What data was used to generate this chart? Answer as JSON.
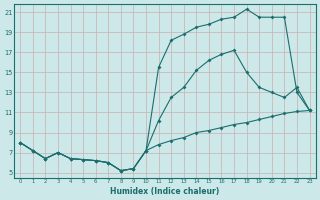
{
  "xlabel": "Humidex (Indice chaleur)",
  "bg_color": "#cce8e8",
  "line_color": "#1a6e6e",
  "grid_color": "#c8b0b0",
  "xlim": [
    -0.5,
    23.5
  ],
  "ylim": [
    4.5,
    21.8
  ],
  "xticks": [
    0,
    1,
    2,
    3,
    4,
    5,
    6,
    7,
    8,
    9,
    10,
    11,
    12,
    13,
    14,
    15,
    16,
    17,
    18,
    19,
    20,
    21,
    22,
    23
  ],
  "yticks": [
    5,
    7,
    9,
    11,
    13,
    15,
    17,
    19,
    21
  ],
  "line1_x": [
    0,
    1,
    2,
    3,
    4,
    5,
    6,
    7,
    8,
    9,
    10,
    11,
    12,
    13,
    14,
    15,
    16,
    17,
    18,
    19,
    20,
    21,
    22,
    23
  ],
  "line1_y": [
    8.0,
    7.2,
    6.4,
    7.0,
    6.4,
    6.3,
    6.2,
    6.0,
    5.2,
    5.4,
    7.2,
    15.5,
    18.2,
    18.8,
    19.5,
    19.8,
    20.3,
    20.5,
    21.3,
    20.5,
    20.5,
    20.5,
    13.0,
    11.2
  ],
  "line2_x": [
    0,
    1,
    2,
    3,
    4,
    5,
    6,
    7,
    8,
    9,
    10,
    11,
    12,
    13,
    14,
    15,
    16,
    17,
    18,
    19,
    20,
    21,
    22,
    23
  ],
  "line2_y": [
    8.0,
    7.2,
    6.4,
    7.0,
    6.4,
    6.3,
    6.2,
    6.0,
    5.2,
    5.4,
    7.2,
    10.2,
    12.5,
    13.5,
    15.2,
    16.2,
    16.8,
    17.2,
    15.0,
    13.5,
    13.0,
    12.5,
    13.5,
    11.2
  ],
  "line3_x": [
    0,
    1,
    2,
    3,
    4,
    5,
    6,
    7,
    8,
    9,
    10,
    11,
    12,
    13,
    14,
    15,
    16,
    17,
    18,
    19,
    20,
    21,
    22,
    23
  ],
  "line3_y": [
    8.0,
    7.2,
    6.4,
    7.0,
    6.4,
    6.3,
    6.2,
    6.0,
    5.2,
    5.4,
    7.2,
    7.8,
    8.2,
    8.5,
    9.0,
    9.2,
    9.5,
    9.8,
    10.0,
    10.3,
    10.6,
    10.9,
    11.1,
    11.2
  ]
}
